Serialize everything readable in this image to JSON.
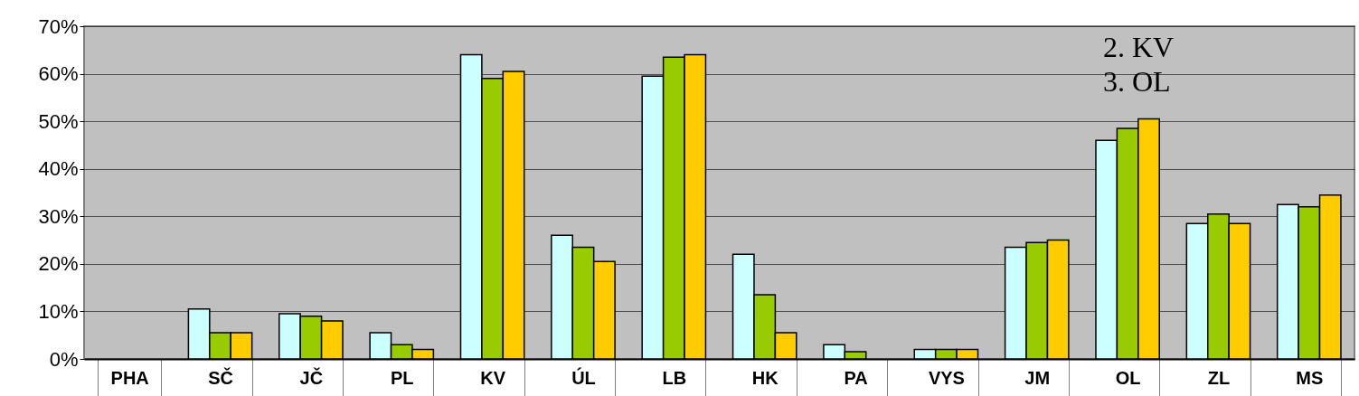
{
  "chart_data": {
    "type": "bar",
    "categories": [
      "PHA",
      "SČ",
      "JČ",
      "PL",
      "KV",
      "ÚL",
      "LB",
      "HK",
      "PA",
      "VYS",
      "JM",
      "OL",
      "ZL",
      "MS"
    ],
    "series": [
      {
        "color": "#ccffff",
        "values": [
          null,
          10.5,
          9.5,
          5.5,
          64,
          26,
          59.5,
          22,
          3,
          2,
          23.5,
          46,
          28.5,
          32.5
        ]
      },
      {
        "color": "#99cc00",
        "values": [
          null,
          5.5,
          9,
          3,
          59,
          23.5,
          63.5,
          13.5,
          1.5,
          2,
          24.5,
          48.5,
          30.5,
          32
        ]
      },
      {
        "color": "#ffcc00",
        "values": [
          null,
          5.5,
          8,
          2,
          60.5,
          20.5,
          64,
          5.5,
          null,
          2,
          25,
          50.5,
          28.5,
          34.5
        ]
      }
    ],
    "ylim": [
      0,
      70
    ],
    "yticks": [
      {
        "value": 0,
        "label": "0%"
      },
      {
        "value": 10,
        "label": "10%"
      },
      {
        "value": 20,
        "label": "20%"
      },
      {
        "value": 30,
        "label": "30%"
      },
      {
        "value": 40,
        "label": "40%"
      },
      {
        "value": 50,
        "label": "50%"
      },
      {
        "value": 60,
        "label": "60%"
      },
      {
        "value": 70,
        "label": "70%"
      }
    ],
    "annotations": [
      "2.  KV",
      "3.  OL"
    ],
    "grid": "y",
    "legend": false
  }
}
